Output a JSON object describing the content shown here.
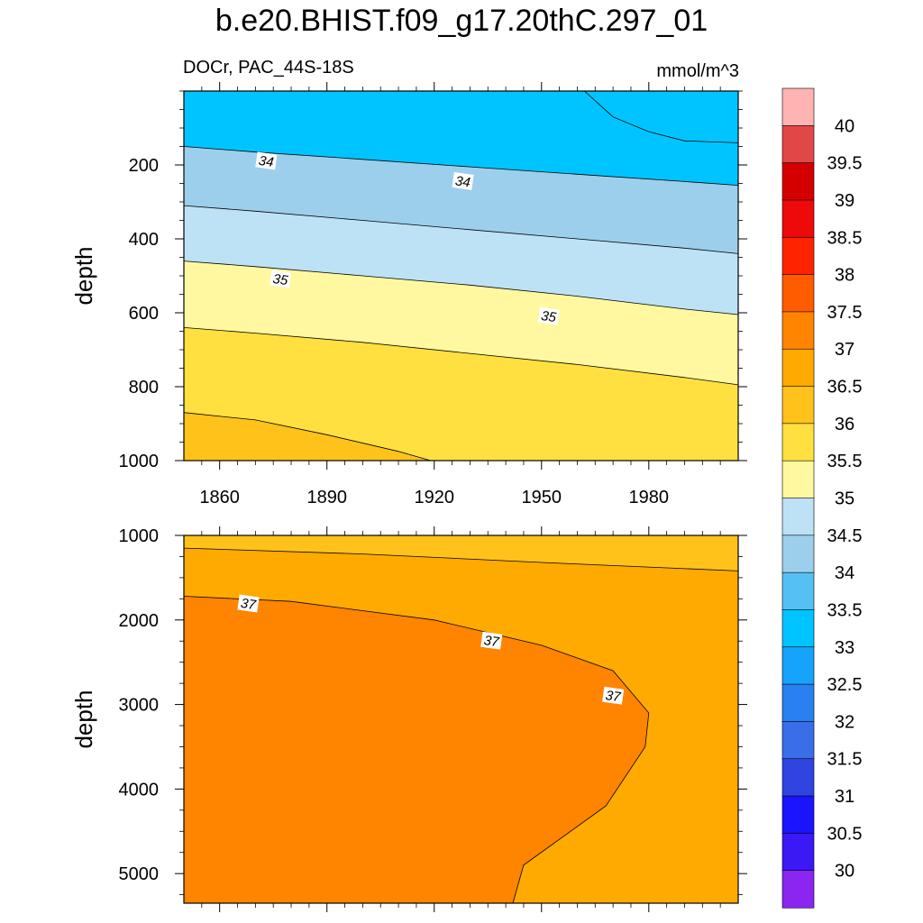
{
  "title": "b.e20.BHIST.f09_g17.20thC.297_01",
  "subtitle": "DOCr, PAC_44S-18S",
  "units": "mmol/m^3",
  "chart_data": [
    {
      "type": "contour",
      "panel": "upper",
      "ylabel": "depth",
      "xlim": [
        1850,
        2005
      ],
      "ylim": [
        1000,
        0
      ],
      "xticks": [
        1860,
        1890,
        1920,
        1950,
        1980
      ],
      "xtick_labels": [
        "1860",
        "1890",
        "1920",
        "1950",
        "1980"
      ],
      "yticks": [
        200,
        400,
        600,
        800,
        1000
      ],
      "ytick_labels": [
        "200",
        "400",
        "600",
        "800",
        "1000"
      ],
      "contour_lines": [
        {
          "level": 33.5,
          "x": [
            1962,
            1970,
            1980,
            1990,
            2005
          ],
          "y": [
            0,
            70,
            110,
            135,
            140
          ]
        },
        {
          "level": 34,
          "x": [
            1850,
            1870,
            1900,
            1930,
            1960,
            1990,
            2005
          ],
          "y": [
            150,
            165,
            185,
            205,
            225,
            245,
            255
          ]
        },
        {
          "level": 34.5,
          "x": [
            1850,
            1870,
            1900,
            1930,
            1960,
            1990,
            2005
          ],
          "y": [
            310,
            325,
            350,
            375,
            400,
            425,
            440
          ]
        },
        {
          "level": 35,
          "x": [
            1850,
            1870,
            1900,
            1930,
            1960,
            1990,
            2005
          ],
          "y": [
            460,
            475,
            500,
            525,
            555,
            590,
            605
          ]
        },
        {
          "level": 35.5,
          "x": [
            1850,
            1870,
            1900,
            1930,
            1960,
            1990,
            2005
          ],
          "y": [
            640,
            655,
            680,
            710,
            740,
            775,
            795
          ]
        },
        {
          "level": 36,
          "x": [
            1850,
            1870,
            1890,
            1910,
            1919
          ],
          "y": [
            870,
            890,
            930,
            975,
            1000
          ]
        }
      ],
      "contour_labels": [
        {
          "text": "34",
          "x": 1873,
          "y": 190
        },
        {
          "text": "34",
          "x": 1928,
          "y": 245
        },
        {
          "text": "35",
          "x": 1877,
          "y": 510
        },
        {
          "text": "35",
          "x": 1952,
          "y": 610
        }
      ]
    },
    {
      "type": "contour",
      "panel": "lower",
      "ylabel": "depth",
      "xlim": [
        1850,
        2005
      ],
      "ylim": [
        5350,
        1000
      ],
      "yticks": [
        1000,
        2000,
        3000,
        4000,
        5000
      ],
      "ytick_labels": [
        "1000",
        "2000",
        "3000",
        "4000",
        "5000"
      ],
      "contour_lines": [
        {
          "level": 36.5,
          "x": [
            1850,
            1900,
            1950,
            2005
          ],
          "y": [
            1150,
            1220,
            1320,
            1420
          ]
        },
        {
          "level": 37,
          "x": [
            1850,
            1880,
            1920,
            1950,
            1970,
            1980,
            1979,
            1968,
            1945,
            1942
          ],
          "y": [
            1720,
            1780,
            2000,
            2300,
            2600,
            3100,
            3500,
            4200,
            4900,
            5350
          ]
        }
      ],
      "contour_labels": [
        {
          "text": "37",
          "x": 1868,
          "y": 1810
        },
        {
          "text": "37",
          "x": 1936,
          "y": 2250
        },
        {
          "text": "37",
          "x": 1970,
          "y": 2900
        }
      ]
    }
  ],
  "colorbar": {
    "levels": [
      "40",
      "39.5",
      "39",
      "38.5",
      "38",
      "37.5",
      "37",
      "36.5",
      "36",
      "35.5",
      "35",
      "34.5",
      "34",
      "33.5",
      "33",
      "32.5",
      "32",
      "31.5",
      "31",
      "30.5",
      "30"
    ],
    "colors": [
      "#ffb3b3",
      "#e04848",
      "#d40000",
      "#ee0a0a",
      "#ff2400",
      "#ff5c00",
      "#ff8400",
      "#ffaa00",
      "#ffc21a",
      "#ffe040",
      "#fff8a0",
      "#bde2f5",
      "#9ccfec",
      "#55c0f3",
      "#00c4ff",
      "#16a3fb",
      "#2980f0",
      "#3a6ee8",
      "#2f44e0",
      "#1a14ff",
      "#3a19f5",
      "#8a26f0"
    ]
  }
}
